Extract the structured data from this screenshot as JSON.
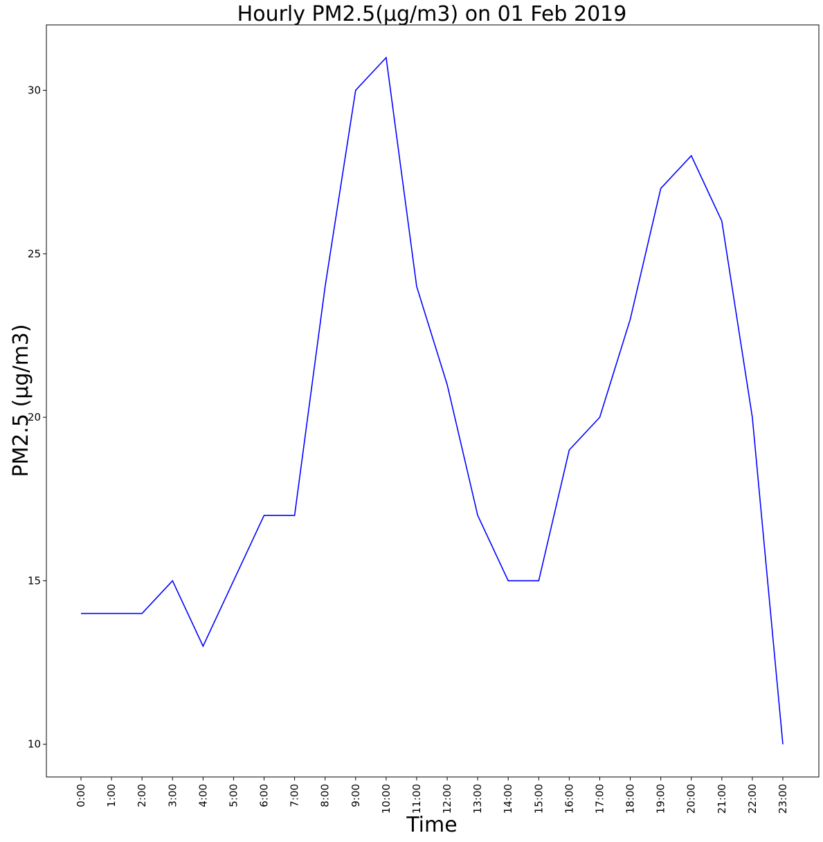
{
  "chart_data": {
    "type": "line",
    "title": "Hourly PM2.5(µg/m3) on 01 Feb 2019",
    "xlabel": "Time",
    "ylabel": "PM2.5 (µg/m3)",
    "categories": [
      "0:00",
      "1:00",
      "2:00",
      "3:00",
      "4:00",
      "5:00",
      "6:00",
      "7:00",
      "8:00",
      "9:00",
      "10:00",
      "11:00",
      "12:00",
      "13:00",
      "14:00",
      "15:00",
      "16:00",
      "17:00",
      "18:00",
      "19:00",
      "20:00",
      "21:00",
      "22:00",
      "23:00"
    ],
    "series": [
      {
        "color": "#0000ff",
        "values": [
          14,
          14,
          14,
          15,
          13,
          15,
          17,
          17,
          24,
          30,
          31,
          24,
          21,
          17,
          15,
          15,
          19,
          20,
          23,
          27,
          28,
          26,
          20,
          10
        ]
      }
    ],
    "ylim": [
      9.0,
      32.0
    ],
    "yticks": [
      10,
      15,
      20,
      25,
      30
    ],
    "grid": false,
    "legend": "none"
  }
}
